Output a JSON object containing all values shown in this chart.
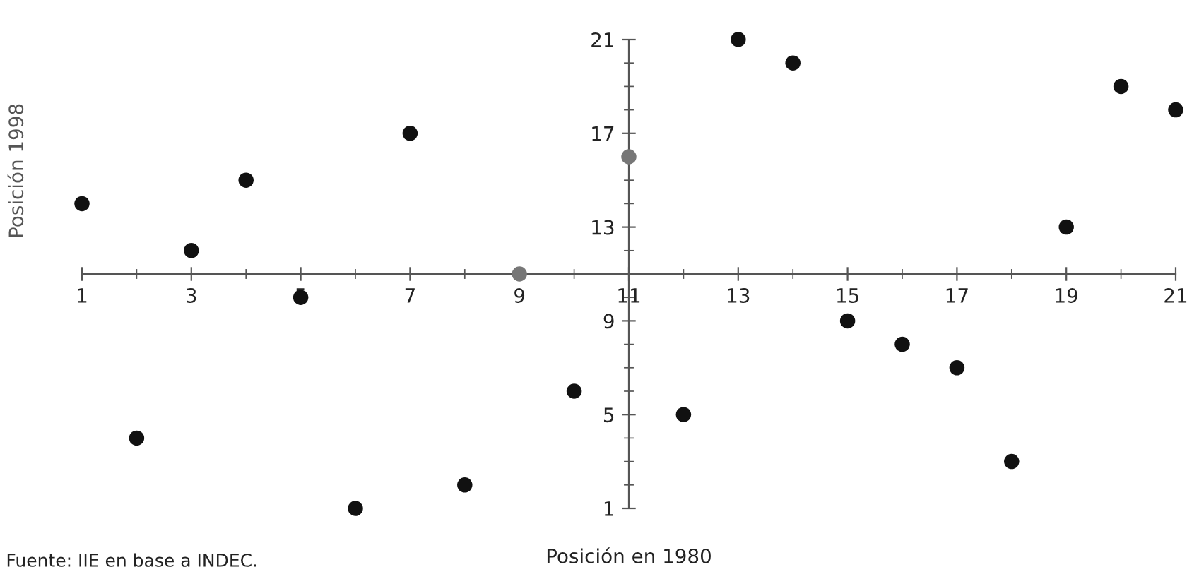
{
  "chart_data": {
    "type": "scatter",
    "xlabel": "Posición en 1980",
    "ylabel": "Posición 1998",
    "annotations": [
      "Fuente: IIE en base a INDEC."
    ],
    "x": [
      1,
      2,
      3,
      4,
      5,
      6,
      7,
      8,
      9,
      10,
      11,
      12,
      13,
      14,
      15,
      16,
      17,
      18,
      19,
      20,
      21
    ],
    "values": [
      14,
      4,
      12,
      15,
      10,
      1,
      17,
      2,
      11,
      6,
      16,
      5,
      21,
      20,
      9,
      8,
      7,
      3,
      13,
      19,
      18
    ],
    "colors": [
      "#111111",
      "#111111",
      "#111111",
      "#111111",
      "#111111",
      "#111111",
      "#111111",
      "#111111",
      "#777777",
      "#111111",
      "#777777",
      "#111111",
      "#111111",
      "#111111",
      "#111111",
      "#111111",
      "#111111",
      "#111111",
      "#111111",
      "#111111",
      "#111111"
    ],
    "marker": "circle",
    "xlim": [
      1,
      21
    ],
    "ylim": [
      1,
      21
    ],
    "xticks": [
      1,
      3,
      5,
      7,
      9,
      11,
      13,
      15,
      17,
      19,
      21
    ],
    "yticks": [
      1,
      5,
      9,
      13,
      17,
      21
    ],
    "grid": false
  }
}
